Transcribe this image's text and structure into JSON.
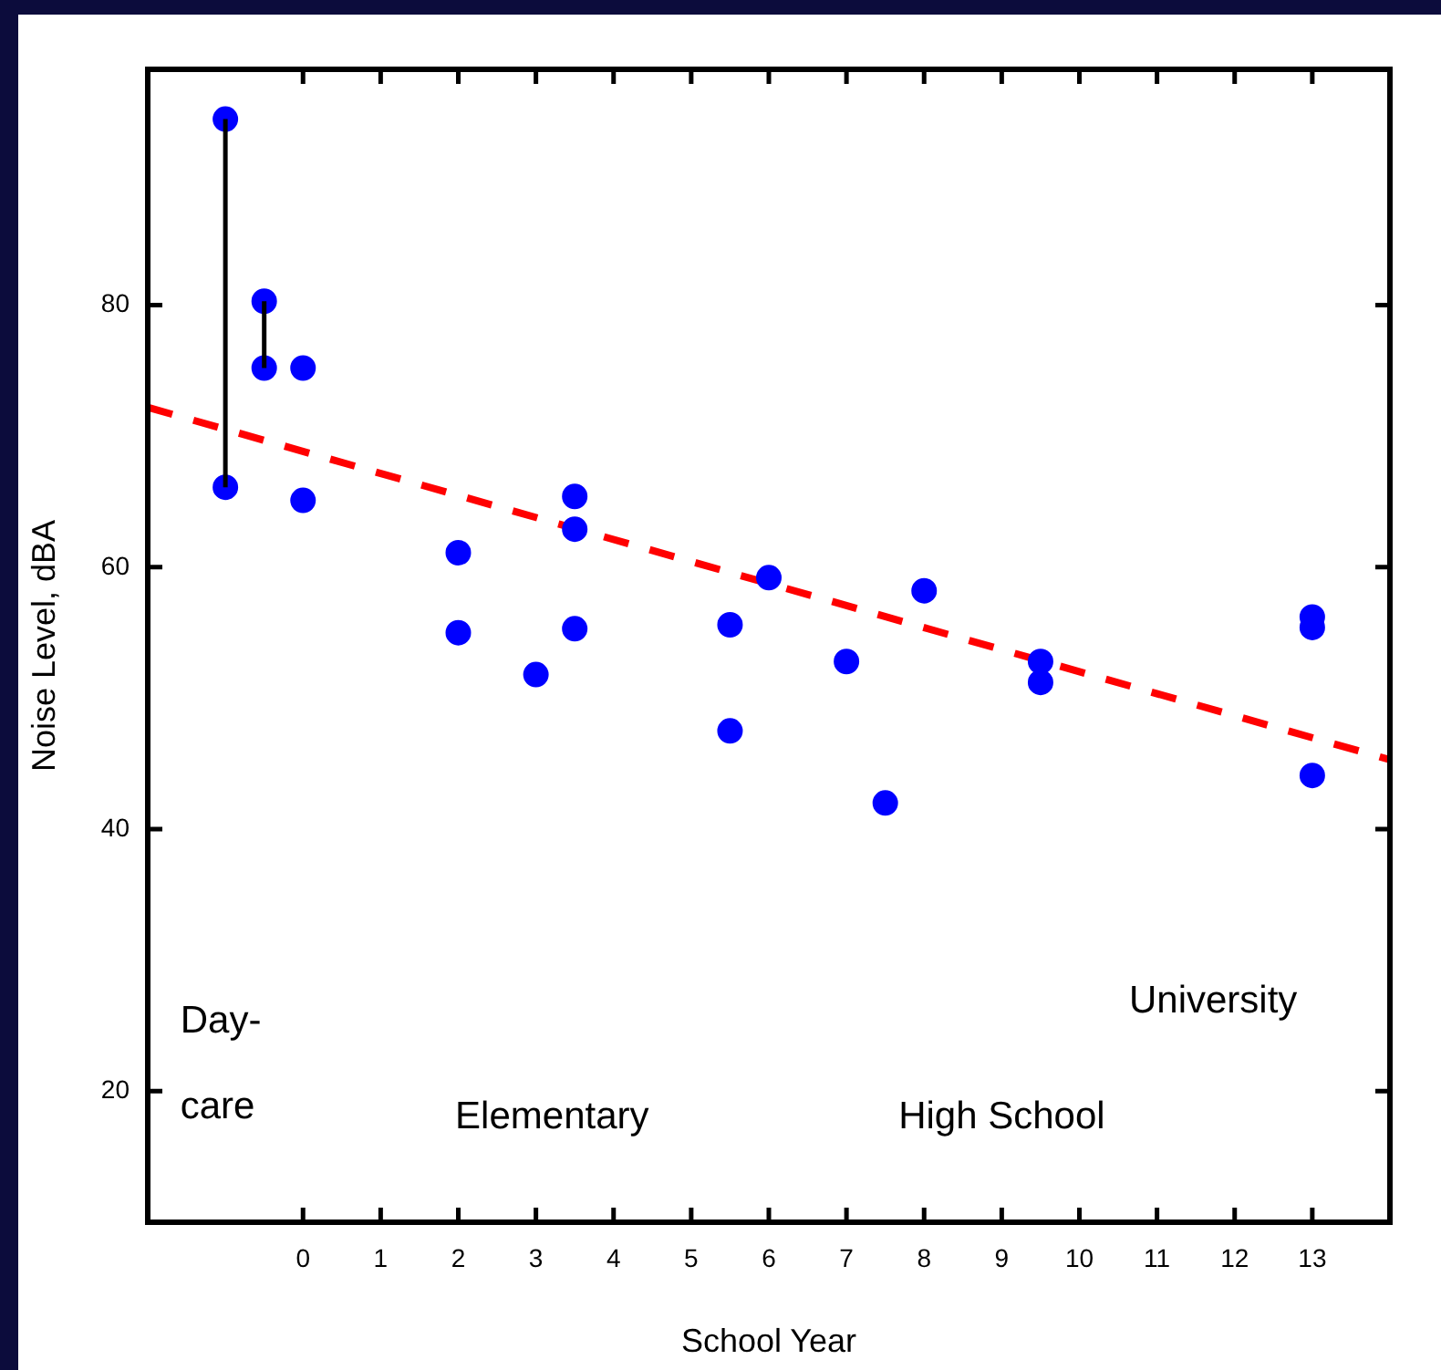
{
  "chart_data": {
    "type": "scatter",
    "xlabel": "School Year",
    "ylabel": "Noise Level, dBA",
    "xlim": [
      -2,
      14
    ],
    "xticks": [
      0,
      1,
      2,
      3,
      4,
      5,
      6,
      7,
      8,
      9,
      10,
      11,
      12,
      13
    ],
    "ylim": [
      10,
      98
    ],
    "yticks": [
      20,
      40,
      60,
      80
    ],
    "grid": false,
    "legend": false,
    "marker": "circle",
    "series": [
      {
        "type": "line",
        "color": "#000000",
        "marker": "none",
        "x": [
          -1,
          -1
        ],
        "values": [
          66.1,
          94.2
        ]
      },
      {
        "type": "line",
        "color": "#000000",
        "marker": "none",
        "x": [
          -0.5,
          -0.5
        ],
        "values": [
          75.2,
          80.3
        ]
      },
      {
        "color": "#0000ff",
        "x": [
          -1,
          -1,
          -0.5,
          -0.5,
          0,
          0,
          2,
          2,
          3,
          3.5,
          3.5,
          3.5,
          5.5,
          5.5,
          6,
          7,
          7.5,
          8,
          9.5,
          9.5,
          13,
          13,
          13
        ],
        "values": [
          94.2,
          66.1,
          80.3,
          75.2,
          75.2,
          65.1,
          61.1,
          55.0,
          51.8,
          65.4,
          62.9,
          55.3,
          55.6,
          47.5,
          59.2,
          52.8,
          42.0,
          58.2,
          52.8,
          51.2,
          56.2,
          55.4,
          44.1
        ]
      },
      {
        "type": "line",
        "color": "#ff0000",
        "marker": "none",
        "line_style": "dashed",
        "x": [
          -2,
          14
        ],
        "values": [
          72.2,
          45.3
        ]
      }
    ],
    "annotations": [
      "Day-\ncare",
      "Elementary",
      "High School",
      "University"
    ]
  }
}
